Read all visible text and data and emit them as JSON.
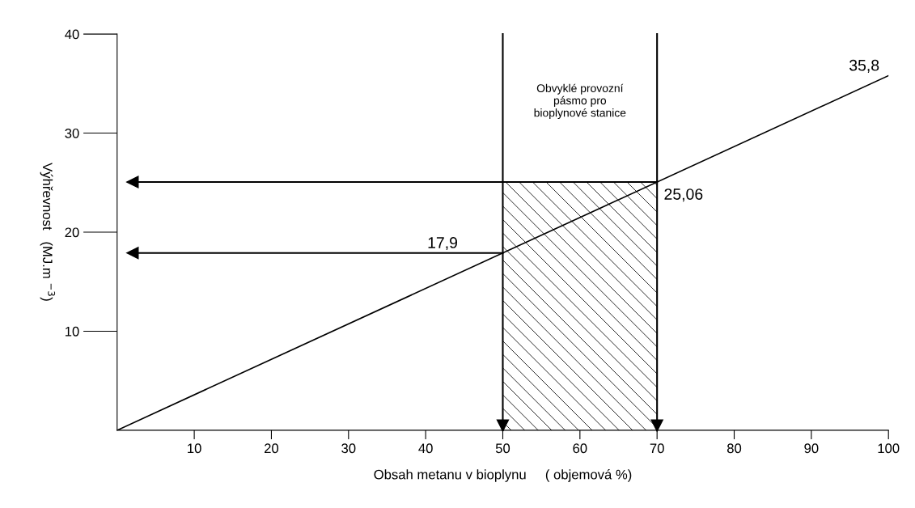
{
  "chart_data": {
    "type": "line",
    "xlabel": "Obsah metanu v bioplynu     ( objemová %)",
    "ylabel": "Výhřevnost   (MJ.m $^{−3}$)",
    "xlim": [
      0,
      100
    ],
    "ylim": [
      0,
      40
    ],
    "xticks": [
      10,
      20,
      30,
      40,
      50,
      60,
      70,
      80,
      90,
      100
    ],
    "yticks": [
      10,
      20,
      30,
      40
    ],
    "grid": false,
    "marker": "none",
    "line_style": "solid",
    "series": [
      {
        "color": "#000000",
        "x": [
          0,
          100
        ],
        "values": [
          0,
          35.8
        ]
      },
      {
        "type": "area",
        "color": "#000000",
        "x": [
          50,
          70
        ],
        "values": [
          25.06,
          25.06
        ]
      }
    ],
    "ref_lines": [
      {
        "axis": "x",
        "value": 50,
        "color": "#000000"
      },
      {
        "axis": "x",
        "value": 70,
        "color": "#000000"
      },
      {
        "axis": "y",
        "value": 25.06,
        "color": "#000000"
      },
      {
        "axis": "y",
        "value": 17.9,
        "color": "#000000"
      }
    ],
    "annotations": [
      {
        "text": "35,8",
        "x": 100,
        "y": 35.8
      },
      {
        "text": "25,06",
        "x": 70,
        "y": 25.06
      },
      {
        "text": "17,9",
        "x": 50,
        "y": 17.9
      },
      "Obvyklé provozní\npásmo pro\nbioplynové stanice"
    ]
  }
}
